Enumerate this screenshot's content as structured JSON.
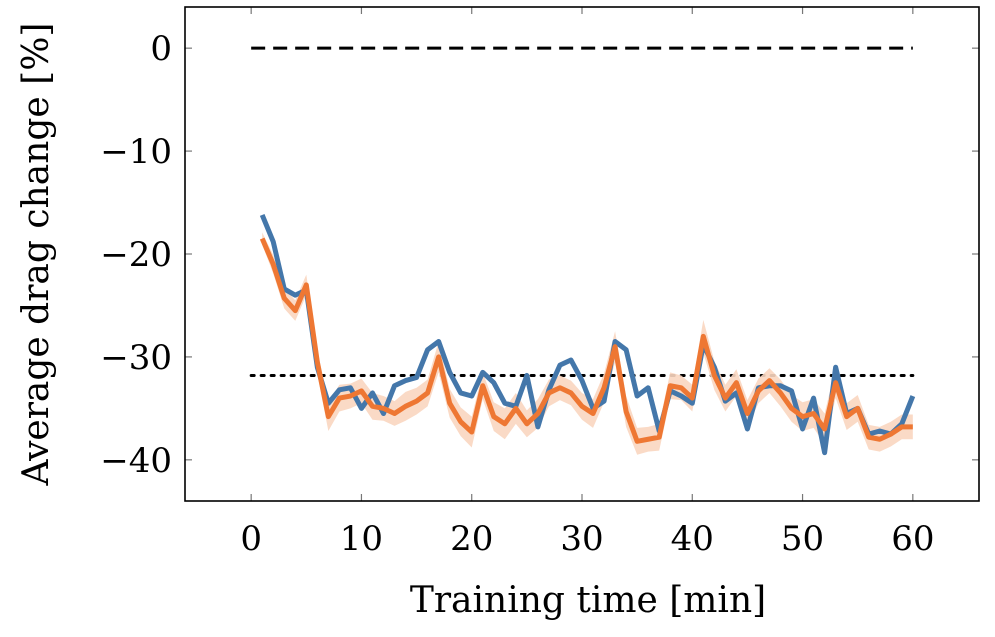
{
  "chart_data": {
    "type": "line",
    "xlabel": "Training time [min]",
    "ylabel": "Average drag change [%]",
    "xlim": [
      -6,
      66
    ],
    "ylim": [
      -44,
      4
    ],
    "x_ticks": [
      0,
      10,
      20,
      30,
      40,
      50,
      60
    ],
    "y_ticks": [
      0,
      -10,
      -20,
      -30,
      -40
    ],
    "x_tick_labels": [
      "0",
      "10",
      "20",
      "30",
      "40",
      "50",
      "60"
    ],
    "y_tick_labels": [
      "0",
      "−10",
      "−20",
      "−30",
      "−40"
    ],
    "grid": false,
    "legend": "none",
    "reference_lines": [
      {
        "style": "dashed",
        "y": 0,
        "x_range": [
          0,
          60
        ]
      },
      {
        "style": "dotted",
        "y": -31.8,
        "x_range": [
          0,
          60
        ]
      }
    ],
    "series": [
      {
        "color": "#4477aa",
        "x": [
          1,
          2,
          3,
          4,
          5,
          6,
          7,
          8,
          9,
          10,
          11,
          12,
          13,
          14,
          15,
          16,
          17,
          18,
          19,
          20,
          21,
          22,
          23,
          24,
          25,
          26,
          27,
          28,
          29,
          30,
          31,
          32,
          33,
          34,
          35,
          36,
          37,
          38,
          39,
          40,
          41,
          42,
          43,
          44,
          45,
          46,
          47,
          48,
          49,
          50,
          51,
          52,
          53,
          54,
          55,
          56,
          57,
          58,
          59,
          60
        ],
        "y": [
          -16.2,
          -18.8,
          -23.4,
          -24.0,
          -23.5,
          -31.0,
          -34.5,
          -33.2,
          -33.0,
          -35.0,
          -33.5,
          -35.5,
          -32.8,
          -32.3,
          -32.0,
          -29.3,
          -28.5,
          -31.5,
          -33.5,
          -33.8,
          -31.5,
          -32.5,
          -34.5,
          -34.8,
          -31.8,
          -36.8,
          -33.2,
          -30.8,
          -30.3,
          -32.3,
          -35.0,
          -34.3,
          -28.5,
          -29.3,
          -33.8,
          -33.0,
          -37.2,
          -33.3,
          -33.8,
          -34.5,
          -28.8,
          -31.0,
          -34.3,
          -33.5,
          -37.0,
          -33.0,
          -32.8,
          -32.8,
          -33.3,
          -37.0,
          -34.0,
          -39.3,
          -31.0,
          -35.5,
          -35.0,
          -37.5,
          -37.2,
          -37.5,
          -36.5,
          -33.8
        ]
      },
      {
        "color": "#ee7733",
        "band": "#fad6c0",
        "x": [
          1,
          2,
          3,
          4,
          5,
          6,
          7,
          8,
          9,
          10,
          11,
          12,
          13,
          14,
          15,
          16,
          17,
          18,
          19,
          20,
          21,
          22,
          23,
          24,
          25,
          26,
          27,
          28,
          29,
          30,
          31,
          32,
          33,
          34,
          35,
          36,
          37,
          38,
          39,
          40,
          41,
          42,
          43,
          44,
          45,
          46,
          47,
          48,
          49,
          50,
          51,
          52,
          53,
          54,
          55,
          56,
          57,
          58,
          59,
          60
        ],
        "y": [
          -18.5,
          -21.0,
          -24.3,
          -25.5,
          -23.0,
          -30.5,
          -35.8,
          -34.0,
          -33.8,
          -33.3,
          -34.8,
          -35.0,
          -35.5,
          -34.8,
          -34.3,
          -33.5,
          -30.0,
          -34.5,
          -36.3,
          -37.3,
          -32.8,
          -35.8,
          -36.5,
          -35.0,
          -36.5,
          -35.5,
          -33.5,
          -33.0,
          -33.5,
          -34.8,
          -35.5,
          -33.0,
          -29.0,
          -35.3,
          -38.2,
          -38.0,
          -37.8,
          -32.8,
          -33.0,
          -34.0,
          -28.0,
          -31.8,
          -34.0,
          -32.5,
          -35.5,
          -33.3,
          -32.3,
          -33.5,
          -35.0,
          -35.8,
          -35.5,
          -37.0,
          -32.5,
          -35.8,
          -35.0,
          -37.8,
          -38.0,
          -37.5,
          -36.8,
          -36.8
        ],
        "band_width": [
          0.6,
          0.9,
          1.0,
          1.0,
          1.0,
          1.2,
          1.4,
          1.3,
          1.2,
          1.2,
          1.3,
          1.2,
          1.2,
          1.4,
          1.3,
          1.3,
          1.5,
          1.4,
          1.4,
          1.5,
          1.3,
          1.4,
          1.5,
          1.5,
          1.3,
          1.4,
          1.3,
          1.2,
          1.2,
          1.3,
          1.4,
          1.4,
          1.5,
          1.5,
          1.3,
          1.2,
          1.3,
          1.3,
          1.2,
          1.3,
          1.6,
          1.4,
          1.3,
          1.3,
          1.3,
          1.2,
          1.2,
          1.3,
          1.3,
          1.4,
          1.4,
          1.5,
          1.5,
          1.3,
          1.3,
          1.2,
          1.2,
          1.2,
          1.2,
          1.2
        ]
      }
    ]
  }
}
